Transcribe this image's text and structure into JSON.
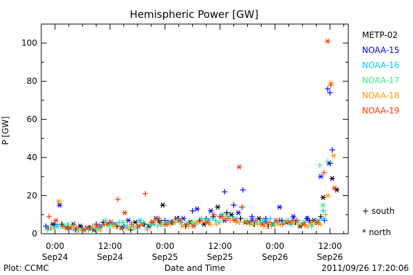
{
  "chart_data": {
    "type": "scatter",
    "title": "Hemispheric Power [GW]",
    "xlabel": "Date and Time",
    "ylabel": "P [GW]",
    "x_unit": "hour of day, Sep 23-26 2011 UT",
    "xlim": [
      21,
      88
    ],
    "ylim": [
      0,
      110
    ],
    "y_ticks": [
      0,
      20,
      40,
      60,
      80,
      100
    ],
    "x_ticks": [
      {
        "x": 24,
        "time": "0:00",
        "date": "Sep24"
      },
      {
        "x": 36,
        "time": "12:00",
        "date": "Sep24"
      },
      {
        "x": 48,
        "time": "0:00",
        "date": "Sep25"
      },
      {
        "x": 60,
        "time": "12:00",
        "date": "Sep25"
      },
      {
        "x": 72,
        "time": "0:00",
        "date": "Sep26"
      },
      {
        "x": 84,
        "time": "12:00",
        "date": "Sep26"
      }
    ],
    "grid": false,
    "legend_position": "right",
    "markers": {
      "south": "+",
      "north": "*"
    },
    "series": [
      {
        "name": "METP-02",
        "color": "#000000",
        "south": [
          [
            22.5,
            3
          ],
          [
            25.5,
            5
          ],
          [
            28.5,
            2
          ],
          [
            31.5,
            3
          ],
          [
            34.5,
            6
          ],
          [
            37.5,
            4
          ],
          [
            40.5,
            2
          ],
          [
            43.5,
            5
          ],
          [
            46.5,
            7
          ],
          [
            49.5,
            6
          ],
          [
            52.5,
            4
          ],
          [
            55.5,
            7
          ],
          [
            58.5,
            9
          ],
          [
            61.5,
            11
          ],
          [
            64.5,
            8
          ],
          [
            67.5,
            5
          ],
          [
            70.5,
            4
          ],
          [
            73.5,
            7
          ],
          [
            76.5,
            6
          ],
          [
            79.5,
            7
          ],
          [
            82,
            9
          ],
          [
            84,
            37
          ]
        ],
        "north": [
          [
            23.5,
            5
          ],
          [
            26.5,
            3
          ],
          [
            29.5,
            4
          ],
          [
            32.5,
            2
          ],
          [
            35.5,
            5
          ],
          [
            38.5,
            3
          ],
          [
            41.5,
            6
          ],
          [
            44.5,
            4
          ],
          [
            47,
            6
          ],
          [
            47.5,
            15
          ],
          [
            50.5,
            8
          ],
          [
            53.5,
            6
          ],
          [
            56.5,
            5
          ],
          [
            59.5,
            14
          ],
          [
            62.5,
            10
          ],
          [
            65.5,
            6
          ],
          [
            68.5,
            8
          ],
          [
            71.5,
            5
          ],
          [
            74.5,
            6
          ],
          [
            77.5,
            4
          ],
          [
            80.5,
            7
          ],
          [
            82.5,
            19
          ],
          [
            84.5,
            29
          ],
          [
            85.5,
            23
          ]
        ]
      },
      {
        "name": "NOAA-15",
        "color": "#0000ff",
        "south": [
          [
            22,
            4
          ],
          [
            24,
            5
          ],
          [
            27,
            3
          ],
          [
            30,
            3
          ],
          [
            33,
            5
          ],
          [
            36,
            6
          ],
          [
            39,
            4
          ],
          [
            42,
            3
          ],
          [
            45,
            6
          ],
          [
            48,
            7
          ],
          [
            51,
            8
          ],
          [
            54,
            12
          ],
          [
            57,
            8
          ],
          [
            60,
            9
          ],
          [
            61,
            22
          ],
          [
            63,
            15
          ],
          [
            65,
            23
          ],
          [
            67,
            9
          ],
          [
            70,
            8
          ],
          [
            73,
            7
          ],
          [
            76,
            7
          ],
          [
            79,
            8
          ],
          [
            81,
            6
          ],
          [
            82.8,
            7
          ],
          [
            83.5,
            76
          ],
          [
            84,
            74
          ],
          [
            84.5,
            44
          ]
        ],
        "north": [
          [
            25,
            15
          ],
          [
            28,
            5
          ],
          [
            31,
            3
          ],
          [
            34,
            4
          ],
          [
            37,
            5
          ],
          [
            40,
            7
          ],
          [
            43,
            5
          ],
          [
            46,
            8
          ],
          [
            49,
            6
          ],
          [
            52,
            8
          ],
          [
            55,
            13
          ],
          [
            58,
            12
          ],
          [
            61,
            7
          ],
          [
            64,
            11
          ],
          [
            67,
            7
          ],
          [
            70,
            6
          ],
          [
            73,
            14
          ],
          [
            76,
            9
          ],
          [
            79,
            8
          ],
          [
            82,
            30
          ],
          [
            83.8,
            37
          ]
        ]
      },
      {
        "name": "NOAA-16",
        "color": "#00ccff",
        "south": [
          [
            23,
            3
          ],
          [
            26,
            4
          ],
          [
            29,
            2
          ],
          [
            32,
            3
          ],
          [
            35,
            7
          ],
          [
            38,
            6
          ],
          [
            41,
            4
          ],
          [
            44,
            3
          ],
          [
            47,
            5
          ],
          [
            50,
            6
          ],
          [
            53,
            5
          ],
          [
            56,
            8
          ],
          [
            59,
            7
          ],
          [
            62,
            9
          ],
          [
            65,
            14
          ],
          [
            68,
            6
          ],
          [
            71,
            8
          ],
          [
            74,
            6
          ],
          [
            77,
            7
          ],
          [
            80,
            4
          ],
          [
            82.5,
            12
          ]
        ],
        "north": [
          [
            24.5,
            4
          ],
          [
            27.5,
            3
          ],
          [
            30.5,
            2
          ],
          [
            33.5,
            3
          ],
          [
            36.5,
            5
          ],
          [
            39.5,
            4
          ],
          [
            42.5,
            7
          ],
          [
            45.5,
            5
          ],
          [
            48.5,
            6
          ],
          [
            51.5,
            6
          ],
          [
            54.5,
            5
          ],
          [
            57.5,
            7
          ],
          [
            60.5,
            10
          ],
          [
            63.5,
            8
          ],
          [
            66.5,
            6
          ],
          [
            69.5,
            7
          ],
          [
            72.5,
            6
          ],
          [
            75.5,
            5
          ],
          [
            78.5,
            6
          ],
          [
            81.5,
            7
          ],
          [
            82.7,
            8
          ]
        ]
      },
      {
        "name": "NOAA-17",
        "color": "#33ee88",
        "south": [
          [
            22.3,
            2
          ],
          [
            25.3,
            4
          ],
          [
            28.3,
            3
          ],
          [
            31.3,
            2
          ],
          [
            34.3,
            4
          ],
          [
            37.3,
            5
          ],
          [
            40.3,
            3
          ],
          [
            43.3,
            6
          ],
          [
            46.3,
            4
          ],
          [
            49.3,
            6
          ],
          [
            52.3,
            5
          ],
          [
            55.3,
            6
          ],
          [
            58.3,
            8
          ],
          [
            61.3,
            9
          ],
          [
            64.3,
            6
          ],
          [
            67.3,
            5
          ],
          [
            70.3,
            6
          ],
          [
            73.3,
            5
          ],
          [
            76.3,
            6
          ],
          [
            79.3,
            4
          ],
          [
            81.8,
            36
          ],
          [
            83.5,
            38
          ]
        ],
        "north": [
          [
            23.8,
            3
          ],
          [
            26.8,
            5
          ],
          [
            29.8,
            2
          ],
          [
            32.8,
            3
          ],
          [
            35.8,
            4
          ],
          [
            38.8,
            6
          ],
          [
            41.8,
            3
          ],
          [
            44.8,
            5
          ],
          [
            47.8,
            5
          ],
          [
            50.8,
            7
          ],
          [
            53.8,
            6
          ],
          [
            56.8,
            7
          ],
          [
            59.8,
            6
          ],
          [
            62.8,
            8
          ],
          [
            65.8,
            7
          ],
          [
            68.8,
            6
          ],
          [
            71.8,
            5
          ],
          [
            74.8,
            7
          ],
          [
            77.8,
            5
          ],
          [
            80.8,
            6
          ],
          [
            82.5,
            15
          ]
        ]
      },
      {
        "name": "NOAA-18",
        "color": "#ff9900",
        "south": [
          [
            23.2,
            3
          ],
          [
            26.2,
            3
          ],
          [
            29.2,
            2
          ],
          [
            32.2,
            4
          ],
          [
            35.2,
            5
          ],
          [
            38.2,
            3
          ],
          [
            41.2,
            4
          ],
          [
            44.2,
            2
          ],
          [
            47.2,
            5
          ],
          [
            50.2,
            6
          ],
          [
            53.2,
            4
          ],
          [
            56.2,
            6
          ],
          [
            59.2,
            5
          ],
          [
            62.2,
            7
          ],
          [
            65.2,
            6
          ],
          [
            68.2,
            5
          ],
          [
            71.2,
            4
          ],
          [
            74.2,
            6
          ],
          [
            77.2,
            5
          ],
          [
            80.2,
            5
          ],
          [
            83,
            10
          ]
        ],
        "north": [
          [
            24.8,
            17
          ],
          [
            27.8,
            4
          ],
          [
            30.8,
            3
          ],
          [
            33.8,
            2
          ],
          [
            36.8,
            4
          ],
          [
            39.8,
            3
          ],
          [
            42.8,
            5
          ],
          [
            45.8,
            7
          ],
          [
            48.8,
            5
          ],
          [
            51.8,
            4
          ],
          [
            54.8,
            6
          ],
          [
            57.8,
            5
          ],
          [
            60.8,
            8
          ],
          [
            63.8,
            6
          ],
          [
            66.8,
            5
          ],
          [
            69.8,
            4
          ],
          [
            72.8,
            5
          ],
          [
            75.8,
            6
          ],
          [
            78.8,
            4
          ],
          [
            81.8,
            5
          ],
          [
            83.5,
            20
          ],
          [
            84.2,
            79
          ],
          [
            84.8,
            41
          ]
        ]
      },
      {
        "name": "NOAA-19",
        "color": "#ff3300",
        "south": [
          [
            22.7,
            9
          ],
          [
            25.7,
            4
          ],
          [
            28.7,
            3
          ],
          [
            31.7,
            3
          ],
          [
            34.7,
            5
          ],
          [
            37.7,
            18
          ],
          [
            40.7,
            5
          ],
          [
            43.7,
            21
          ],
          [
            46.7,
            8
          ],
          [
            49.7,
            6
          ],
          [
            52.7,
            5
          ],
          [
            55.7,
            7
          ],
          [
            58.7,
            10
          ],
          [
            61.7,
            8
          ],
          [
            64.7,
            14
          ],
          [
            67.7,
            7
          ],
          [
            70.7,
            6
          ],
          [
            73.7,
            5
          ],
          [
            76.7,
            7
          ],
          [
            79.7,
            6
          ],
          [
            82.7,
            32
          ],
          [
            84.2,
            78
          ]
        ],
        "north": [
          [
            24.2,
            7
          ],
          [
            27.2,
            3
          ],
          [
            30.2,
            2
          ],
          [
            33.2,
            4
          ],
          [
            36.2,
            6
          ],
          [
            39.2,
            11
          ],
          [
            42.2,
            4
          ],
          [
            45.2,
            6
          ],
          [
            48.2,
            5
          ],
          [
            51.2,
            7
          ],
          [
            54.2,
            4
          ],
          [
            57.2,
            6
          ],
          [
            60.2,
            9
          ],
          [
            63.2,
            7
          ],
          [
            64.2,
            35
          ],
          [
            66.2,
            6
          ],
          [
            69.2,
            5
          ],
          [
            72.2,
            7
          ],
          [
            75.2,
            6
          ],
          [
            78.2,
            5
          ],
          [
            81.2,
            6
          ],
          [
            83.5,
            101
          ],
          [
            85,
            24
          ]
        ]
      }
    ],
    "legend_markers": [
      {
        "symbol": "+",
        "label": "south"
      },
      {
        "symbol": "*",
        "label": "north"
      }
    ],
    "footer": {
      "source": "Plot: CCMC",
      "timestamp": "2011/09/26 17:20:06"
    }
  }
}
